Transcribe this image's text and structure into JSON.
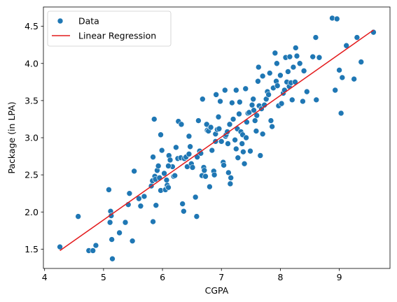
{
  "chart_data": {
    "type": "scatter",
    "title": "",
    "xlabel": "CGPA",
    "ylabel": "Package (in LPA)",
    "xlim": [
      3.98,
      9.86
    ],
    "ylim": [
      1.24,
      4.76
    ],
    "xticks": [
      4,
      5,
      6,
      7,
      8,
      9
    ],
    "yticks": [
      1.5,
      2.0,
      2.5,
      3.0,
      3.5,
      4.0,
      4.5
    ],
    "xtick_labels": [
      "4",
      "5",
      "6",
      "7",
      "8",
      "9"
    ],
    "ytick_labels": [
      "1.5",
      "2.0",
      "2.5",
      "3.0",
      "3.5",
      "4.0",
      "4.5"
    ],
    "grid": false,
    "legend_position": "top-left",
    "series": [
      {
        "name": "Data",
        "kind": "scatter",
        "color": "#1f77b4",
        "points": [
          [
            4.26,
            1.53
          ],
          [
            4.57,
            1.94
          ],
          [
            4.75,
            1.48
          ],
          [
            4.82,
            1.48
          ],
          [
            4.87,
            1.55
          ],
          [
            5.09,
            2.3
          ],
          [
            5.11,
            1.86
          ],
          [
            5.12,
            2.01
          ],
          [
            5.13,
            1.95
          ],
          [
            5.14,
            1.63
          ],
          [
            5.15,
            1.37
          ],
          [
            5.27,
            1.72
          ],
          [
            5.37,
            1.86
          ],
          [
            5.42,
            2.1
          ],
          [
            5.44,
            2.25
          ],
          [
            5.49,
            1.61
          ],
          [
            5.52,
            2.55
          ],
          [
            5.6,
            2.18
          ],
          [
            5.63,
            2.08
          ],
          [
            5.69,
            2.21
          ],
          [
            5.81,
            2.35
          ],
          [
            5.83,
            2.42
          ],
          [
            5.84,
            2.74
          ],
          [
            5.84,
            1.87
          ],
          [
            5.86,
            3.25
          ],
          [
            5.87,
            2.48
          ],
          [
            5.88,
            2.44
          ],
          [
            5.89,
            2.09
          ],
          [
            5.91,
            2.56
          ],
          [
            5.93,
            2.62
          ],
          [
            5.95,
            2.46
          ],
          [
            5.97,
            3.04
          ],
          [
            5.97,
            2.29
          ],
          [
            5.99,
            2.83
          ],
          [
            6.03,
            2.52
          ],
          [
            6.05,
            2.3
          ],
          [
            6.07,
            2.43
          ],
          [
            6.08,
            2.36
          ],
          [
            6.1,
            2.33
          ],
          [
            6.11,
            2.76
          ],
          [
            6.13,
            2.7
          ],
          [
            6.17,
            2.61
          ],
          [
            6.19,
            2.48
          ],
          [
            6.21,
            2.49
          ],
          [
            6.23,
            2.87
          ],
          [
            6.26,
            2.72
          ],
          [
            6.27,
            3.22
          ],
          [
            6.31,
            2.73
          ],
          [
            6.32,
            3.18
          ],
          [
            6.34,
            2.11
          ],
          [
            6.36,
            2.01
          ],
          [
            6.37,
            2.72
          ],
          [
            6.4,
            2.74
          ],
          [
            6.42,
            2.61
          ],
          [
            6.45,
            3.02
          ],
          [
            6.47,
            2.88
          ],
          [
            6.49,
            2.65
          ],
          [
            6.51,
            2.6
          ],
          [
            6.56,
            2.2
          ],
          [
            6.58,
            1.94
          ],
          [
            6.59,
            2.74
          ],
          [
            6.61,
            3.23
          ],
          [
            6.63,
            2.82
          ],
          [
            6.65,
            2.79
          ],
          [
            6.67,
            2.49
          ],
          [
            6.68,
            3.52
          ],
          [
            6.7,
            2.6
          ],
          [
            6.71,
            2.56
          ],
          [
            6.73,
            2.48
          ],
          [
            6.75,
            3.18
          ],
          [
            6.76,
            3.1
          ],
          [
            6.78,
            3.09
          ],
          [
            6.8,
            2.34
          ],
          [
            6.82,
            3.14
          ],
          [
            6.84,
            2.83
          ],
          [
            6.87,
            2.55
          ],
          [
            6.88,
            2.5
          ],
          [
            6.9,
            3.05
          ],
          [
            6.91,
            3.58
          ],
          [
            6.93,
            3.11
          ],
          [
            6.95,
            3.28
          ],
          [
            6.96,
            3.12
          ],
          [
            6.98,
            3.49
          ],
          [
            7.0,
            2.95
          ],
          [
            7.03,
            2.67
          ],
          [
            7.04,
            2.63
          ],
          [
            7.06,
            3.64
          ],
          [
            7.07,
            3.02
          ],
          [
            7.08,
            3.04
          ],
          [
            7.1,
            3.08
          ],
          [
            7.11,
            2.92
          ],
          [
            7.12,
            2.53
          ],
          [
            7.14,
            3.18
          ],
          [
            7.15,
            2.38
          ],
          [
            7.16,
            2.46
          ],
          [
            7.18,
            3.47
          ],
          [
            7.2,
            3.25
          ],
          [
            7.23,
            2.97
          ],
          [
            7.25,
            3.64
          ],
          [
            7.27,
            3.12
          ],
          [
            7.28,
            2.73
          ],
          [
            7.3,
            3.32
          ],
          [
            7.31,
            3.48
          ],
          [
            7.33,
            3.08
          ],
          [
            7.35,
            2.92
          ],
          [
            7.36,
            3.04
          ],
          [
            7.37,
            2.81
          ],
          [
            7.39,
            2.65
          ],
          [
            7.41,
            3.66
          ],
          [
            7.43,
            3.21
          ],
          [
            7.45,
            3.33
          ],
          [
            7.47,
            3.34
          ],
          [
            7.49,
            2.82
          ],
          [
            7.52,
            3.44
          ],
          [
            7.54,
            3.52
          ],
          [
            7.55,
            3.37
          ],
          [
            7.57,
            3.23
          ],
          [
            7.59,
            3.09
          ],
          [
            7.62,
            3.76
          ],
          [
            7.63,
            3.95
          ],
          [
            7.64,
            3.43
          ],
          [
            7.66,
            2.76
          ],
          [
            7.68,
            3.39
          ],
          [
            7.7,
            3.83
          ],
          [
            7.73,
            3.44
          ],
          [
            7.76,
            3.52
          ],
          [
            7.78,
            3.62
          ],
          [
            7.8,
            3.58
          ],
          [
            7.82,
            3.87
          ],
          [
            7.84,
            3.23
          ],
          [
            7.86,
            3.15
          ],
          [
            7.88,
            3.67
          ],
          [
            7.91,
            4.14
          ],
          [
            7.93,
            3.76
          ],
          [
            7.94,
            4.0
          ],
          [
            7.97,
            3.43
          ],
          [
            8.0,
            3.84
          ],
          [
            8.02,
            3.46
          ],
          [
            8.05,
            3.6
          ],
          [
            8.07,
            3.64
          ],
          [
            8.09,
            4.08
          ],
          [
            8.11,
            3.75
          ],
          [
            8.13,
            3.89
          ],
          [
            8.15,
            3.69
          ],
          [
            8.16,
            4.09
          ],
          [
            8.18,
            3.74
          ],
          [
            8.2,
            3.51
          ],
          [
            8.22,
            3.95
          ],
          [
            8.26,
            4.21
          ],
          [
            8.28,
            4.1
          ],
          [
            8.33,
            4.0
          ],
          [
            8.38,
            3.49
          ],
          [
            8.45,
            3.62
          ],
          [
            8.55,
            4.09
          ],
          [
            8.6,
            4.35
          ],
          [
            8.61,
            3.51
          ],
          [
            8.66,
            4.08
          ],
          [
            8.88,
            4.61
          ],
          [
            8.93,
            3.64
          ],
          [
            8.96,
            4.6
          ],
          [
            9.0,
            3.91
          ],
          [
            9.03,
            3.33
          ],
          [
            9.05,
            3.81
          ],
          [
            9.12,
            4.24
          ],
          [
            9.25,
            3.79
          ],
          [
            9.3,
            4.35
          ],
          [
            9.37,
            4.02
          ],
          [
            9.58,
            4.42
          ],
          [
            7.42,
            3.0
          ],
          [
            7.6,
            3.3
          ],
          [
            6.9,
            2.95
          ],
          [
            7.95,
            3.7
          ],
          [
            8.25,
            3.75
          ],
          [
            6.45,
            2.78
          ],
          [
            7.25,
            2.85
          ],
          [
            7.7,
            3.05
          ],
          [
            6.1,
            2.62
          ],
          [
            8.4,
            3.9
          ]
        ]
      },
      {
        "name": "Linear Regression",
        "kind": "line",
        "color": "#e31a1c",
        "x": [
          4.26,
          9.58
        ],
        "y": [
          1.48,
          4.45
        ]
      }
    ]
  }
}
